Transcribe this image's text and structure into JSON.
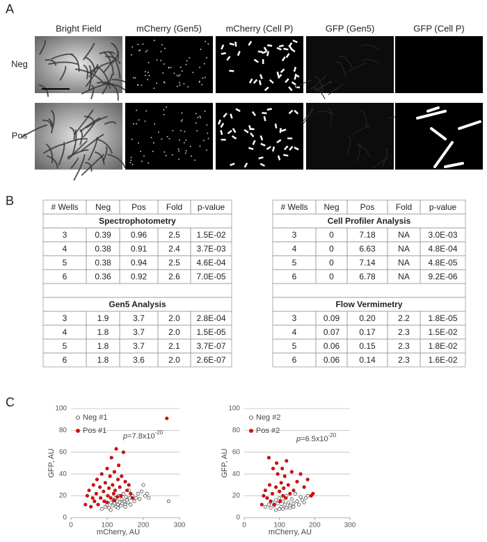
{
  "panel_a": {
    "label": "A",
    "columns": [
      "Bright Field",
      "mCherry (Gen5)",
      "mCherry (Cell P)",
      "GFP (Gen5)",
      "GFP (Cell P)"
    ],
    "rows": [
      "Neg",
      "Pos"
    ]
  },
  "panel_b": {
    "label": "B",
    "tables": [
      {
        "header": [
          "# Wells",
          "Neg",
          "Pos",
          "Fold",
          "p-value"
        ],
        "sections": [
          {
            "title": "Spectrophotometry",
            "rows": [
              [
                "3",
                "0.39",
                "0.96",
                "2.5",
                "1.5E-02"
              ],
              [
                "4",
                "0.38",
                "0.91",
                "2.4",
                "3.7E-03"
              ],
              [
                "5",
                "0.38",
                "0.94",
                "2.5",
                "4.6E-04"
              ],
              [
                "6",
                "0.36",
                "0.92",
                "2.6",
                "7.0E-05"
              ]
            ]
          },
          {
            "title": "Gen5 Analysis",
            "rows": [
              [
                "3",
                "1.9",
                "3.7",
                "2.0",
                "2.8E-04"
              ],
              [
                "4",
                "1.8",
                "3.7",
                "2.0",
                "1.5E-05"
              ],
              [
                "5",
                "1.8",
                "3.7",
                "2.1",
                "3.7E-07"
              ],
              [
                "6",
                "1.8",
                "3.6",
                "2.0",
                "2.6E-07"
              ]
            ]
          }
        ]
      },
      {
        "header": [
          "# Wells",
          "Neg",
          "Pos",
          "Fold",
          "p-value"
        ],
        "sections": [
          {
            "title": "Cell Profiler Analysis",
            "rows": [
              [
                "3",
                "0",
                "7.18",
                "NA",
                "3.0E-03"
              ],
              [
                "4",
                "0",
                "6.63",
                "NA",
                "4.8E-04"
              ],
              [
                "5",
                "0",
                "7.14",
                "NA",
                "4.8E-05"
              ],
              [
                "6",
                "0",
                "6.78",
                "NA",
                "9.2E-06"
              ]
            ]
          },
          {
            "title": "Flow Vermimetry",
            "rows": [
              [
                "3",
                "0.09",
                "0.20",
                "2.2",
                "1.8E-05"
              ],
              [
                "4",
                "0.07",
                "0.17",
                "2.3",
                "1.5E-02"
              ],
              [
                "5",
                "0.06",
                "0.15",
                "2.3",
                "1.8E-02"
              ],
              [
                "6",
                "0.06",
                "0.14",
                "2.3",
                "1.6E-02"
              ]
            ]
          }
        ]
      }
    ]
  },
  "panel_c": {
    "label": "C"
  },
  "chart_data": [
    {
      "type": "scatter",
      "xlabel": "mCherry, AU",
      "ylabel": "GFP, AU",
      "xlim": [
        0,
        300
      ],
      "ylim": [
        0,
        100
      ],
      "xticks": [
        0,
        100,
        200,
        300
      ],
      "yticks": [
        0,
        20,
        40,
        60,
        80,
        100
      ],
      "grid": true,
      "annotation": {
        "italic": "p",
        "text": "=7.8x10",
        "sup": "-20"
      },
      "series": [
        {
          "name": "Neg #1",
          "color": "#333333",
          "filled": false,
          "x": [
            85,
            95,
            100,
            105,
            110,
            115,
            118,
            120,
            122,
            125,
            128,
            130,
            132,
            135,
            138,
            140,
            142,
            145,
            148,
            150,
            152,
            155,
            158,
            160,
            162,
            165,
            170,
            175,
            180,
            185,
            190,
            195,
            200,
            205,
            210,
            215,
            270,
            130,
            110,
            150
          ],
          "values": [
            8,
            10,
            12,
            9,
            14,
            11,
            16,
            13,
            18,
            10,
            15,
            12,
            20,
            14,
            11,
            17,
            13,
            22,
            15,
            12,
            19,
            16,
            14,
            25,
            18,
            12,
            20,
            15,
            18,
            22,
            17,
            24,
            30,
            20,
            22,
            18,
            15,
            9,
            7,
            10
          ]
        },
        {
          "name": "Pos #1",
          "color": "#e01010",
          "filled": true,
          "x": [
            40,
            45,
            50,
            55,
            60,
            62,
            65,
            70,
            72,
            75,
            80,
            82,
            85,
            90,
            92,
            95,
            100,
            102,
            105,
            108,
            110,
            112,
            115,
            118,
            120,
            122,
            125,
            128,
            130,
            132,
            135,
            138,
            140,
            145,
            150,
            155,
            160,
            165,
            170,
            265,
            100,
            120
          ],
          "values": [
            12,
            20,
            25,
            10,
            18,
            30,
            15,
            22,
            35,
            12,
            28,
            18,
            40,
            24,
            15,
            32,
            45,
            20,
            27,
            38,
            18,
            55,
            30,
            22,
            42,
            25,
            63,
            19,
            35,
            48,
            28,
            20,
            38,
            60,
            33,
            25,
            30,
            22,
            18,
            91,
            14,
            16
          ]
        }
      ]
    },
    {
      "type": "scatter",
      "xlabel": "mCherry, AU",
      "ylabel": "GFP, AU",
      "xlim": [
        0,
        300
      ],
      "ylim": [
        0,
        100
      ],
      "xticks": [
        0,
        100,
        200,
        300
      ],
      "yticks": [
        0,
        20,
        40,
        60,
        80,
        100
      ],
      "grid": true,
      "annotation": {
        "italic": "p",
        "text": "=6.5x10",
        "sup": "-20"
      },
      "series": [
        {
          "name": "Neg #2",
          "color": "#333333",
          "filled": false,
          "x": [
            60,
            70,
            75,
            80,
            85,
            90,
            95,
            100,
            105,
            110,
            115,
            120,
            125,
            130,
            135,
            140,
            145,
            150,
            155,
            160,
            165,
            170,
            175,
            180,
            100,
            120,
            140,
            90,
            110,
            130
          ],
          "values": [
            10,
            12,
            9,
            14,
            11,
            16,
            13,
            18,
            10,
            15,
            12,
            20,
            14,
            11,
            17,
            13,
            22,
            15,
            12,
            19,
            16,
            14,
            18,
            20,
            8,
            9,
            10,
            7,
            8,
            9
          ]
        },
        {
          "name": "Pos #2",
          "color": "#e01010",
          "filled": true,
          "x": [
            50,
            55,
            60,
            65,
            70,
            72,
            75,
            80,
            82,
            85,
            90,
            92,
            95,
            100,
            102,
            105,
            108,
            110,
            112,
            115,
            118,
            120,
            125,
            130,
            135,
            140,
            150,
            160,
            170,
            180,
            190,
            195
          ],
          "values": [
            12,
            20,
            25,
            18,
            55,
            30,
            15,
            22,
            45,
            12,
            28,
            50,
            40,
            24,
            15,
            32,
            45,
            20,
            27,
            38,
            18,
            52,
            30,
            22,
            42,
            25,
            33,
            40,
            28,
            35,
            20,
            22
          ]
        }
      ]
    }
  ]
}
